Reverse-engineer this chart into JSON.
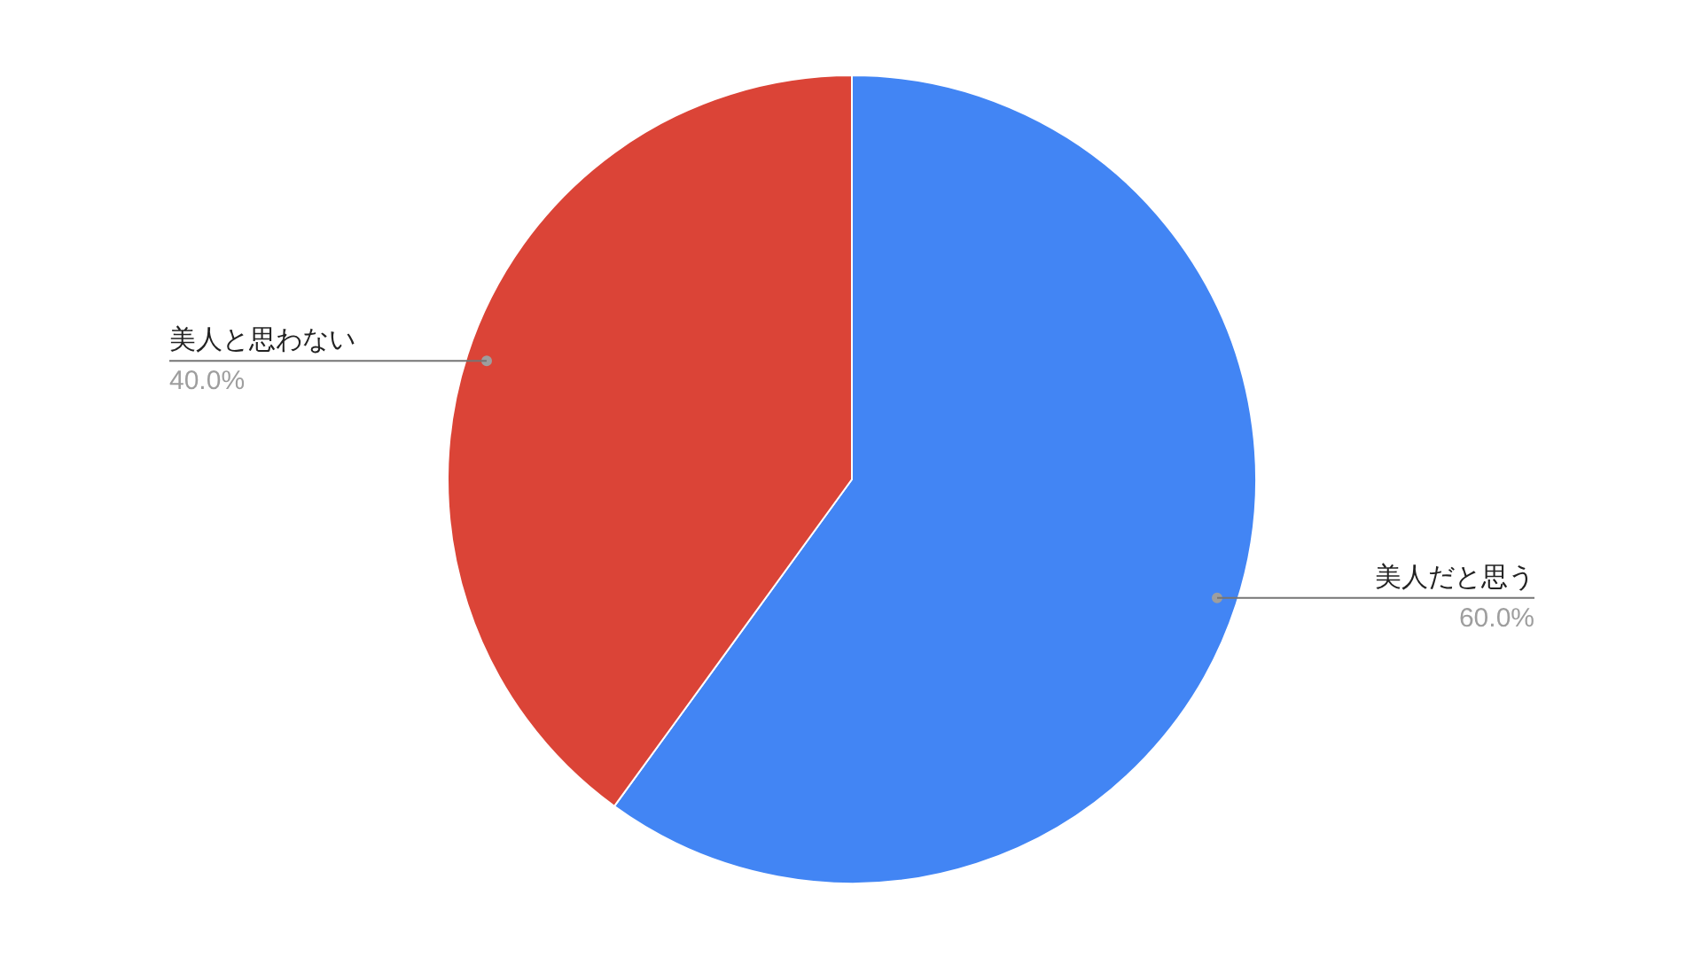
{
  "chart_data": {
    "type": "pie",
    "categories": [
      "美人だと思う",
      "美人と思わない"
    ],
    "values": [
      60,
      40
    ],
    "colors": [
      "#4285f4",
      "#db4437"
    ],
    "value_labels": [
      "60.0%",
      "40.0%"
    ]
  }
}
